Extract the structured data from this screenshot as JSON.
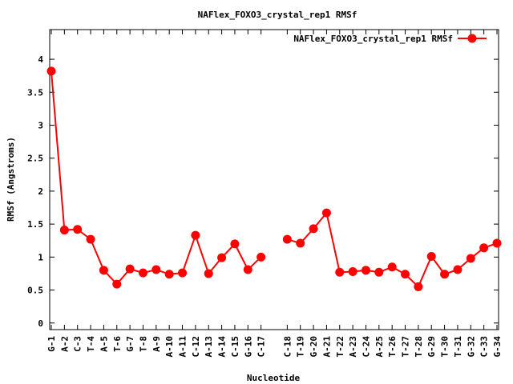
{
  "chart_data": {
    "type": "line",
    "title": "NAFlex_FOXO3_crystal_rep1 RMSf",
    "xlabel": "Nucleotide",
    "ylabel": "RMSf (Angstroms)",
    "ylim": [
      -0.1,
      4.45
    ],
    "yticks": [
      0,
      0.5,
      1,
      1.5,
      2,
      2.5,
      3,
      3.5,
      4
    ],
    "ytick_labels": [
      "0",
      "0.5",
      "1",
      "1.5",
      "2",
      "2.5",
      "3",
      "3.5",
      "4"
    ],
    "grid": false,
    "legend_position": "top-right",
    "color": "#ff0000",
    "categories": [
      "G-1",
      "A-2",
      "C-3",
      "T-4",
      "A-5",
      "T-6",
      "G-7",
      "T-8",
      "A-9",
      "A-10",
      "A-11",
      "C-12",
      "A-13",
      "A-14",
      "C-15",
      "G-16",
      "C-17",
      "",
      "C-18",
      "T-19",
      "G-20",
      "A-21",
      "T-22",
      "A-23",
      "C-24",
      "A-25",
      "T-26",
      "T-27",
      "T-28",
      "G-29",
      "T-30",
      "T-31",
      "G-32",
      "C-33",
      "G-34"
    ],
    "series": [
      {
        "name": "NAFlex_FOXO3_crystal_rep1 RMSf",
        "values": [
          3.82,
          1.41,
          1.42,
          1.27,
          0.8,
          0.59,
          0.82,
          0.76,
          0.81,
          0.74,
          0.76,
          1.33,
          0.75,
          0.99,
          1.2,
          0.81,
          1.0,
          null,
          1.27,
          1.21,
          1.43,
          1.67,
          0.77,
          0.78,
          0.8,
          0.77,
          0.85,
          0.74,
          0.55,
          1.01,
          0.74,
          0.81,
          0.98,
          1.14,
          1.21
        ]
      }
    ]
  }
}
